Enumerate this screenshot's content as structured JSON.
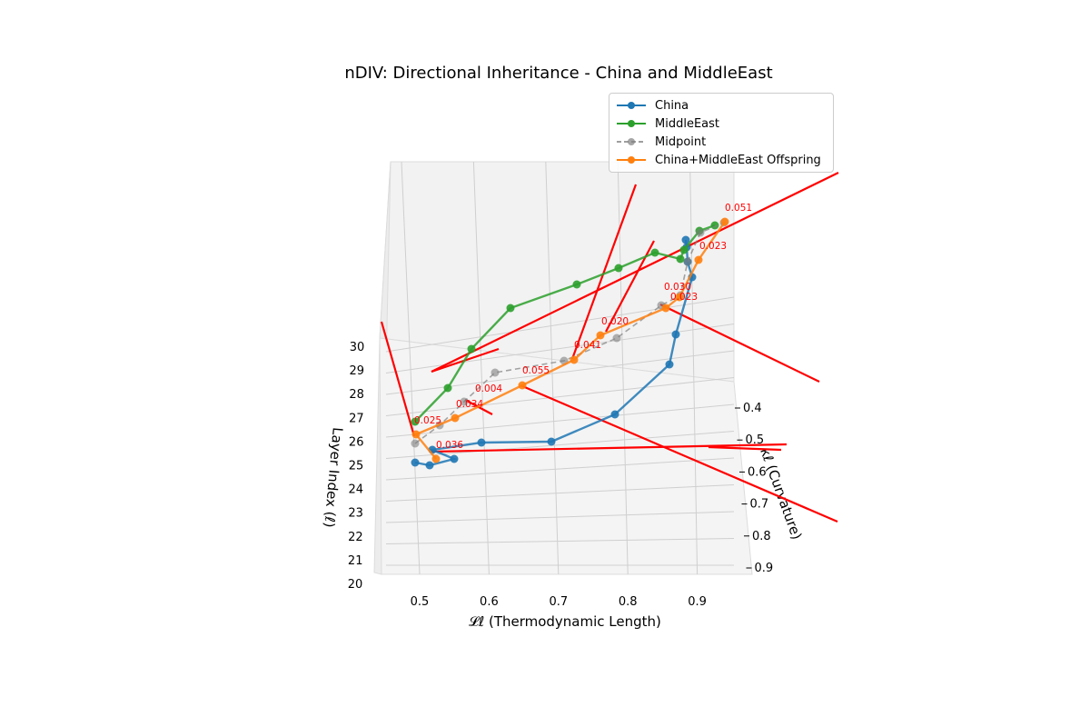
{
  "chart_data": {
    "type": "line",
    "projection": "3d",
    "title": "nDIV: Directional Inheritance - China and MiddleEast",
    "xlabel": "𝓛ℓ (Thermodynamic Length)",
    "ylabel": "κℓ (Curvature)",
    "zlabel": "Layer Index (ℓ)",
    "xlim": [
      0.45,
      0.97
    ],
    "ylim": [
      0.35,
      0.9
    ],
    "zlim": [
      20,
      31
    ],
    "x_ticks": [
      "0.5",
      "0.6",
      "0.7",
      "0.8",
      "0.9"
    ],
    "y_ticks": [
      "0.4",
      "0.5",
      "0.6",
      "0.7",
      "0.8",
      "0.9"
    ],
    "z_ticks": [
      "20",
      "21",
      "22",
      "23",
      "24",
      "25",
      "26",
      "27",
      "28",
      "29",
      "30"
    ],
    "grid": true,
    "legend_position": "top-right",
    "series": [
      {
        "name": "China",
        "color": "#1f77b4",
        "style": "solid",
        "points": [
          [
            0.49,
            0.56,
            25.3
          ],
          [
            0.51,
            0.56,
            25.2
          ],
          [
            0.55,
            0.56,
            25.4
          ],
          [
            0.52,
            0.52,
            25.8
          ],
          [
            0.59,
            0.52,
            26.3
          ],
          [
            0.69,
            0.53,
            26.5
          ],
          [
            0.79,
            0.47,
            27.8
          ],
          [
            0.87,
            0.45,
            29.1
          ],
          [
            0.89,
            0.42,
            30.3
          ],
          [
            0.9,
            0.4,
            31.4
          ],
          [
            0.89,
            0.4,
            32.0
          ],
          [
            0.9,
            0.43,
            32.8
          ],
          [
            0.89,
            0.45,
            33.5
          ]
        ]
      },
      {
        "name": "MiddleEast",
        "color": "#2ca02c",
        "style": "solid",
        "points": [
          [
            0.49,
            0.49,
            27.0
          ],
          [
            0.53,
            0.46,
            28.0
          ],
          [
            0.57,
            0.43,
            29.3
          ],
          [
            0.62,
            0.42,
            30.5
          ],
          [
            0.71,
            0.42,
            31.5
          ],
          [
            0.77,
            0.39,
            32.6
          ],
          [
            0.84,
            0.37,
            33.0
          ],
          [
            0.87,
            0.38,
            33.0
          ],
          [
            0.88,
            0.4,
            33.2
          ],
          [
            0.89,
            0.4,
            33.6
          ],
          [
            0.92,
            0.4,
            34.0
          ]
        ]
      },
      {
        "name": "Midpoint",
        "color": "#7f7f7f",
        "style": "dashed",
        "points": [
          [
            0.49,
            0.51,
            26.2
          ],
          [
            0.53,
            0.49,
            27.1
          ],
          [
            0.56,
            0.48,
            27.8
          ],
          [
            0.61,
            0.46,
            28.5
          ],
          [
            0.71,
            0.46,
            29.0
          ],
          [
            0.79,
            0.43,
            30.2
          ],
          [
            0.86,
            0.42,
            30.8
          ],
          [
            0.88,
            0.41,
            31.5
          ],
          [
            0.89,
            0.42,
            32.5
          ],
          [
            0.9,
            0.42,
            33.2
          ],
          [
            0.91,
            0.42,
            34.0
          ]
        ]
      },
      {
        "name": "China+MiddleEast Offspring",
        "color": "#ff7f0e",
        "style": "solid",
        "points": [
          [
            0.51,
            0.5,
            26.6
          ],
          [
            0.53,
            0.49,
            27.3
          ],
          [
            0.56,
            0.48,
            28.3
          ],
          [
            0.64,
            0.47,
            28.7
          ],
          [
            0.71,
            0.46,
            29.1
          ],
          [
            0.76,
            0.45,
            29.8
          ],
          [
            0.86,
            0.43,
            30.5
          ],
          [
            0.88,
            0.42,
            31.1
          ],
          [
            0.9,
            0.41,
            32.0
          ],
          [
            0.92,
            0.42,
            33.4
          ],
          [
            0.93,
            0.42,
            34.0
          ]
        ]
      }
    ],
    "annotations": [
      "0.036",
      "0.025",
      "0.034",
      "0.004",
      "0.055",
      "0.041",
      "0.020",
      "0.030",
      "0.023",
      "0.023",
      "0.051"
    ],
    "annotation_color": "#ff0000",
    "direction_arrows_color": "#ff0000"
  }
}
